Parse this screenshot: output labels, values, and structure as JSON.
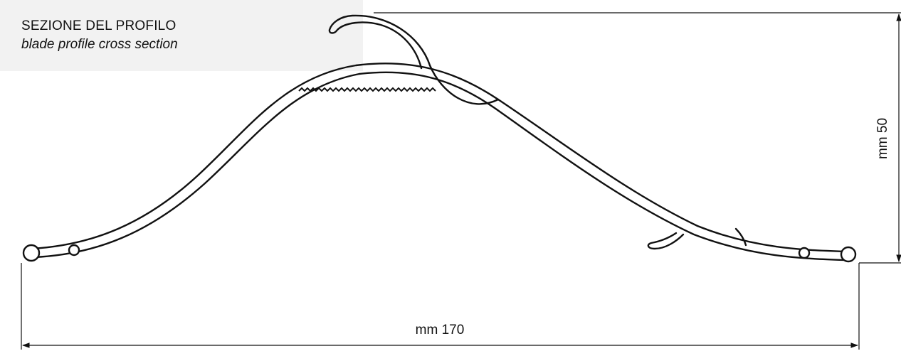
{
  "header": {
    "title": "SEZIONE DEL PROFILO",
    "subtitle": "blade profile cross section"
  },
  "dimensions": {
    "width_label": "mm 170",
    "height_label": "mm 50"
  },
  "colors": {
    "line": "#111111",
    "panel": "#f2f2f2",
    "fill": "#ffffff"
  }
}
